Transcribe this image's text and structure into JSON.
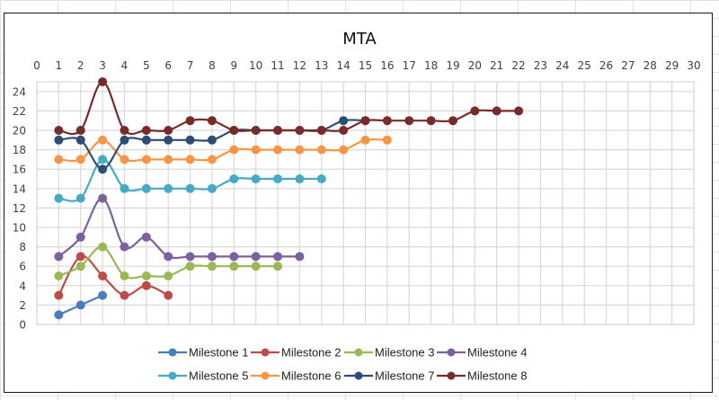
{
  "chart_data": {
    "type": "line",
    "title": "MTA",
    "xlabel": "",
    "ylabel": "",
    "xlim": [
      0,
      30
    ],
    "ylim": [
      0,
      25
    ],
    "x_ticks": [
      "0",
      "1",
      "2",
      "3",
      "4",
      "5",
      "6",
      "7",
      "8",
      "9",
      "10",
      "11",
      "12",
      "13",
      "14",
      "15",
      "16",
      "17",
      "18",
      "19",
      "20",
      "21",
      "22",
      "23",
      "24",
      "25",
      "26",
      "27",
      "28",
      "29",
      "30"
    ],
    "y_ticks": [
      "0",
      "2",
      "4",
      "6",
      "8",
      "10",
      "12",
      "14",
      "16",
      "18",
      "20",
      "22",
      "24"
    ],
    "x_axis_position": "top",
    "grid": true,
    "smooth": true,
    "legend_position": "bottom",
    "series": [
      {
        "name": "Milestone 1",
        "color": "#4a7ebb",
        "x": [
          1,
          2,
          3
        ],
        "values": [
          1,
          2,
          3
        ]
      },
      {
        "name": "Milestone 2",
        "color": "#be4b48",
        "x": [
          1,
          2,
          3,
          4,
          5,
          6
        ],
        "values": [
          3,
          7,
          5,
          3,
          4,
          3
        ]
      },
      {
        "name": "Milestone 3",
        "color": "#98b954",
        "x": [
          1,
          2,
          3,
          4,
          5,
          6,
          7,
          8,
          9,
          10,
          11
        ],
        "values": [
          5,
          6,
          8,
          5,
          5,
          5,
          6,
          6,
          6,
          6,
          6
        ]
      },
      {
        "name": "Milestone 4",
        "color": "#7d60a0",
        "x": [
          1,
          2,
          3,
          4,
          5,
          6,
          7,
          8,
          9,
          10,
          11,
          12
        ],
        "values": [
          7,
          9,
          13,
          8,
          9,
          7,
          7,
          7,
          7,
          7,
          7,
          7
        ]
      },
      {
        "name": "Milestone 5",
        "color": "#46aac5",
        "x": [
          1,
          2,
          3,
          4,
          5,
          6,
          7,
          8,
          9,
          10,
          11,
          12,
          13
        ],
        "values": [
          13,
          13,
          17,
          14,
          14,
          14,
          14,
          14,
          15,
          15,
          15,
          15,
          15
        ]
      },
      {
        "name": "Milestone 6",
        "color": "#f79646",
        "x": [
          1,
          2,
          3,
          4,
          5,
          6,
          7,
          8,
          9,
          10,
          11,
          12,
          13,
          14,
          15,
          16
        ],
        "values": [
          17,
          17,
          19,
          17,
          17,
          17,
          17,
          17,
          18,
          18,
          18,
          18,
          18,
          18,
          19,
          19
        ]
      },
      {
        "name": "Milestone 7",
        "color": "#2c4d75",
        "x": [
          1,
          2,
          3,
          4,
          5,
          6,
          7,
          8,
          9,
          10,
          11,
          12,
          13,
          14,
          15
        ],
        "values": [
          19,
          19,
          16,
          19,
          19,
          19,
          19,
          19,
          20,
          20,
          20,
          20,
          20,
          21,
          21
        ]
      },
      {
        "name": "Milestone 8",
        "color": "#772c2a",
        "x": [
          1,
          2,
          3,
          4,
          5,
          6,
          7,
          8,
          9,
          10,
          11,
          12,
          13,
          14,
          15,
          16,
          17,
          18,
          19,
          20,
          21,
          22
        ],
        "values": [
          20,
          20,
          25,
          20,
          20,
          20,
          21,
          21,
          20,
          20,
          20,
          20,
          20,
          20,
          21,
          21,
          21,
          21,
          21,
          22,
          22,
          22
        ]
      }
    ]
  }
}
